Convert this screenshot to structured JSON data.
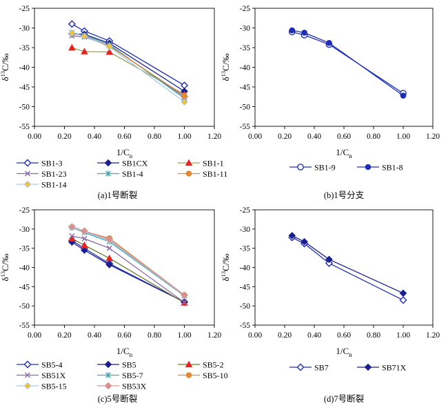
{
  "chart_data": [
    {
      "type": "line",
      "caption": "(a)1号断裂",
      "xlabel": "1/C",
      "xlabel_sub": "n",
      "ylabel": "δ13C/‰",
      "xlim": [
        0,
        1.2
      ],
      "ylim": [
        -55,
        -25
      ],
      "xticks": [
        "0.00",
        "0.20",
        "0.40",
        "0.60",
        "0.80",
        "1.00",
        "1.20"
      ],
      "yticks": [
        "-25",
        "-30",
        "-35",
        "-40",
        "-45",
        "-50",
        "-55"
      ],
      "legend_cols": 3,
      "series": [
        {
          "name": "SB1-3",
          "color": "#1f2fb5",
          "marker": "diamond-open",
          "x": [
            0.25,
            0.333,
            0.5,
            1.0
          ],
          "y": [
            -29.0,
            -30.8,
            -33.3,
            -44.6
          ]
        },
        {
          "name": "SB1CX",
          "color": "#1b1f8f",
          "marker": "diamond",
          "x": [
            0.25,
            0.333,
            0.5,
            1.0
          ],
          "y": [
            -31.5,
            -31.6,
            -33.9,
            -46.1
          ]
        },
        {
          "name": "SB1-1",
          "color": "#e8231f",
          "line": "#9aa05a",
          "marker": "triangle",
          "x": [
            0.25,
            0.333,
            0.5,
            1.0
          ],
          "y": [
            -35.0,
            -36.0,
            -36.1,
            -46.9
          ]
        },
        {
          "name": "SB1-23",
          "color": "#8a6aa6",
          "marker": "x",
          "x": [
            0.25,
            0.333,
            0.5,
            1.0
          ],
          "y": [
            -32.0,
            -32.3,
            -34.5,
            -47.5
          ]
        },
        {
          "name": "SB1-4",
          "color": "#3fa8b0",
          "marker": "asterisk",
          "x": [
            0.25,
            0.333,
            0.5,
            1.0
          ],
          "y": [
            -31.2,
            -31.9,
            -34.2,
            -47.9
          ]
        },
        {
          "name": "SB1-11",
          "color": "#e08a35",
          "marker": "circle",
          "x": [
            0.25,
            0.333,
            0.5,
            1.0
          ],
          "y": [
            -31.4,
            -32.1,
            -34.6,
            -47.2
          ]
        },
        {
          "name": "SB1-14",
          "color": "#a9c9ea",
          "fill": "#f2c230",
          "marker": "diamond",
          "x": [
            0.25,
            0.333,
            0.5,
            1.0
          ],
          "y": [
            -31.3,
            -32.1,
            -34.8,
            -48.8
          ]
        }
      ]
    },
    {
      "type": "line",
      "caption": "(b)1号分支",
      "xlabel": "1/C",
      "xlabel_sub": "n",
      "ylabel": "δ13C/‰",
      "xlim": [
        0,
        1.2
      ],
      "ylim": [
        -55,
        -25
      ],
      "xticks": [
        "0.00",
        "0.20",
        "0.40",
        "0.60",
        "0.80",
        "1.00",
        "1.20"
      ],
      "yticks": [
        "-25",
        "-30",
        "-35",
        "-40",
        "-45",
        "-50",
        "-55"
      ],
      "legend_cols": 2,
      "series": [
        {
          "name": "SB1-9",
          "color": "#1f2fb5",
          "marker": "circle-open",
          "x": [
            0.25,
            0.333,
            0.5,
            1.0
          ],
          "y": [
            -31.0,
            -31.8,
            -34.2,
            -46.6
          ]
        },
        {
          "name": "SB1-8",
          "color": "#1f2fb5",
          "marker": "circle",
          "x": [
            0.25,
            0.333,
            0.5,
            1.0
          ],
          "y": [
            -30.6,
            -31.2,
            -33.8,
            -47.2
          ]
        }
      ]
    },
    {
      "type": "line",
      "caption": "(c)5号断裂",
      "xlabel": "1/C",
      "xlabel_sub": "n",
      "ylabel": "δ13C/‰",
      "xlim": [
        0,
        1.2
      ],
      "ylim": [
        -55,
        -25
      ],
      "xticks": [
        "0.00",
        "0.20",
        "0.40",
        "0.60",
        "0.80",
        "1.00",
        "1.20"
      ],
      "yticks": [
        "-25",
        "-30",
        "-35",
        "-40",
        "-45",
        "-50",
        "-55"
      ],
      "legend_cols": 3,
      "series": [
        {
          "name": "SB5-4",
          "color": "#1f2fb5",
          "marker": "diamond-open",
          "x": [
            0.25,
            0.333,
            0.5,
            1.0
          ],
          "y": [
            -33.0,
            -35.0,
            -39.0,
            -49.0
          ]
        },
        {
          "name": "SB5",
          "color": "#1b1f8f",
          "marker": "diamond",
          "x": [
            0.25,
            0.333,
            0.5,
            1.0
          ],
          "y": [
            -33.4,
            -35.5,
            -39.3,
            -49.0
          ]
        },
        {
          "name": "SB5-2",
          "color": "#e8231f",
          "line": "#6b7a2e",
          "marker": "triangle",
          "x": [
            0.25,
            0.333,
            0.5,
            1.0
          ],
          "y": [
            -32.5,
            -34.2,
            -37.6,
            -49.2
          ]
        },
        {
          "name": "SB51X",
          "color": "#8a6aa6",
          "marker": "x",
          "x": [
            0.25,
            0.333,
            0.5,
            1.0
          ],
          "y": [
            -31.8,
            -32.5,
            -35.0,
            -49.1
          ]
        },
        {
          "name": "SB5-7",
          "color": "#3fa8b0",
          "marker": "asterisk",
          "x": [
            0.25,
            0.333,
            0.5,
            1.0
          ],
          "y": [
            -29.6,
            -30.9,
            -33.3,
            -47.4
          ]
        },
        {
          "name": "SB5-10",
          "color": "#e08a35",
          "marker": "circle",
          "x": [
            0.25,
            0.333,
            0.5,
            1.0
          ],
          "y": [
            -29.5,
            -30.6,
            -32.4,
            -47.2
          ]
        },
        {
          "name": "SB5-15",
          "color": "#a9c9ea",
          "fill": "#f2c230",
          "marker": "diamond",
          "x": [
            0.25,
            0.333,
            0.5,
            1.0
          ],
          "y": [
            -29.6,
            -30.7,
            -33.0,
            -47.3
          ]
        },
        {
          "name": "SB53X",
          "color": "#d9918f",
          "marker": "diamond",
          "x": [
            0.25,
            0.333,
            0.5,
            1.0
          ],
          "y": [
            -29.4,
            -30.5,
            -32.7,
            -47.2
          ]
        }
      ]
    },
    {
      "type": "line",
      "caption": "(d)7号断裂",
      "xlabel": "1/C",
      "xlabel_sub": "n",
      "ylabel": "δ13C/‰",
      "xlim": [
        0,
        1.2
      ],
      "ylim": [
        -55,
        -25
      ],
      "xticks": [
        "0.00",
        "0.20",
        "0.40",
        "0.60",
        "0.80",
        "1.00",
        "1.20"
      ],
      "yticks": [
        "-25",
        "-30",
        "-35",
        "-40",
        "-45",
        "-50",
        "-55"
      ],
      "legend_cols": 2,
      "series": [
        {
          "name": "SB7",
          "color": "#1f2fb5",
          "marker": "diamond-open",
          "x": [
            0.25,
            0.333,
            0.5,
            1.0
          ],
          "y": [
            -32.2,
            -33.8,
            -38.9,
            -48.5
          ]
        },
        {
          "name": "SB71X",
          "color": "#1b1f8f",
          "marker": "diamond",
          "x": [
            0.25,
            0.333,
            0.5,
            1.0
          ],
          "y": [
            -31.7,
            -33.3,
            -37.9,
            -46.7
          ]
        }
      ]
    }
  ]
}
